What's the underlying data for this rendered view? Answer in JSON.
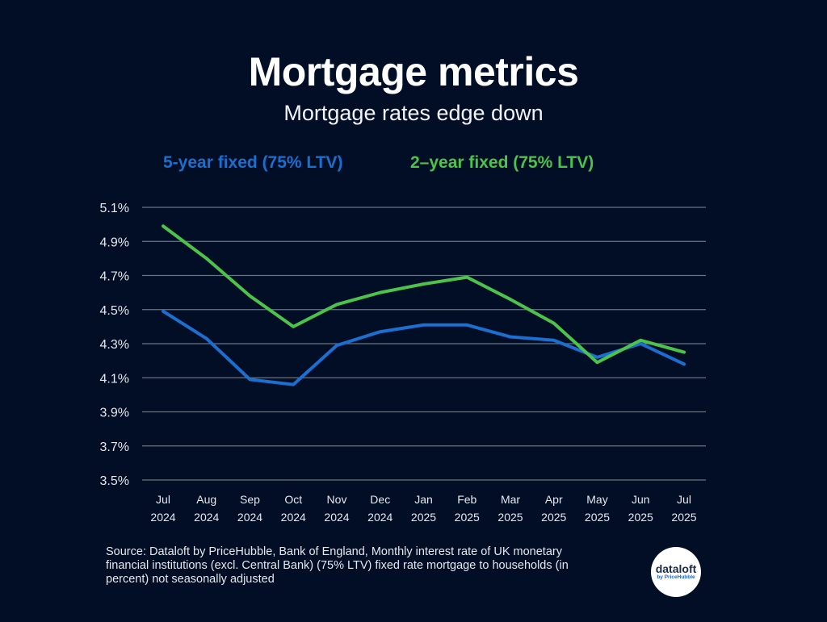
{
  "header": {
    "title": "Mortgage metrics",
    "subtitle": "Mortgage rates edge down"
  },
  "legend": [
    {
      "label": "5-year fixed (75% LTV)",
      "color": "#1a6fd1"
    },
    {
      "label": "2–year fixed (75% LTV)",
      "color": "#4cc34a"
    }
  ],
  "chart_data": {
    "type": "line",
    "title": "Mortgage metrics",
    "subtitle": "Mortgage rates edge down",
    "xlabel": "",
    "ylabel": "",
    "ylim": [
      3.5,
      5.1
    ],
    "yticks": [
      "5.1%",
      "4.9%",
      "4.7%",
      "4.5%",
      "4.3%",
      "4.1%",
      "3.9%",
      "3.7%",
      "3.5%"
    ],
    "ytick_values": [
      5.1,
      4.9,
      4.7,
      4.5,
      4.3,
      4.1,
      3.9,
      3.7,
      3.5
    ],
    "grid": true,
    "legend_position": "top",
    "categories": [
      {
        "month": "Jul",
        "year": "2024"
      },
      {
        "month": "Aug",
        "year": "2024"
      },
      {
        "month": "Sep",
        "year": "2024"
      },
      {
        "month": "Oct",
        "year": "2024"
      },
      {
        "month": "Nov",
        "year": "2024"
      },
      {
        "month": "Dec",
        "year": "2024"
      },
      {
        "month": "Jan",
        "year": "2025"
      },
      {
        "month": "Feb",
        "year": "2025"
      },
      {
        "month": "Mar",
        "year": "2025"
      },
      {
        "month": "Apr",
        "year": "2025"
      },
      {
        "month": "May",
        "year": "2025"
      },
      {
        "month": "Jun",
        "year": "2025"
      },
      {
        "month": "Jul",
        "year": "2025"
      }
    ],
    "series": [
      {
        "name": "5-year fixed (75% LTV)",
        "color": "#1a6fd1",
        "values": [
          4.49,
          4.33,
          4.09,
          4.06,
          4.29,
          4.37,
          4.41,
          4.41,
          4.34,
          4.32,
          4.22,
          4.3,
          4.18
        ]
      },
      {
        "name": "2–year fixed (75% LTV)",
        "color": "#4cc34a",
        "values": [
          4.99,
          4.8,
          4.58,
          4.4,
          4.53,
          4.6,
          4.65,
          4.69,
          4.56,
          4.42,
          4.19,
          4.32,
          4.25
        ]
      }
    ]
  },
  "footer": {
    "source": "Source: Dataloft by PriceHubble, Bank of England, Monthly interest rate of UK monetary financial institutions (excl. Central Bank) (75% LTV) fixed rate mortgage to households (in percent) not seasonally adjusted",
    "logo_main": "dataloft",
    "logo_sub": "by PriceHubble"
  }
}
